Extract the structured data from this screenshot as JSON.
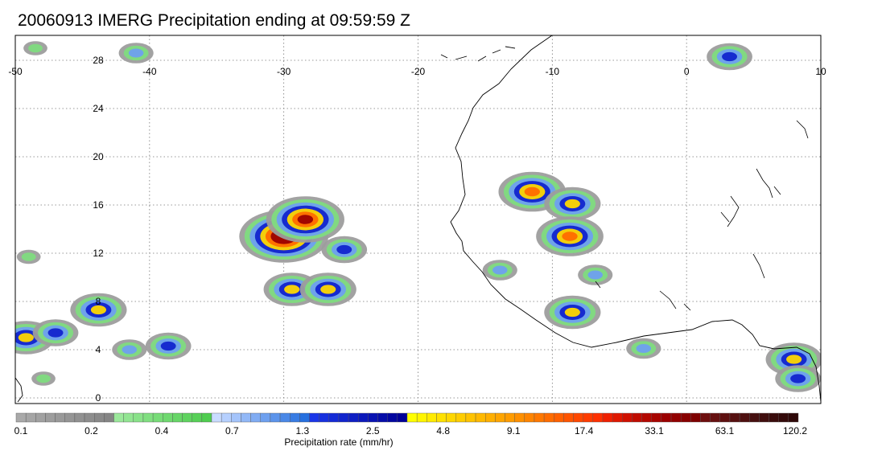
{
  "title": "20060913 IMERG Precipitation ending at 09:59:59 Z",
  "map": {
    "lon_range": [
      -50,
      10
    ],
    "lat_range": [
      0,
      30
    ],
    "lon_labels": [
      "-50",
      "-40",
      "-30",
      "-20",
      "-10",
      "0",
      "10"
    ],
    "lat_labels": [
      "0",
      "4",
      "8",
      "12",
      "16",
      "20",
      "24",
      "28"
    ],
    "grid": "dotted"
  },
  "colorbar": {
    "title": "Precipitation rate (mm/hr)",
    "tick_labels": [
      "0.1",
      "0.2",
      "0.4",
      "0.7",
      "1.3",
      "2.5",
      "4.8",
      "9.1",
      "17.4",
      "33.1",
      "63.1",
      "120.2"
    ],
    "colors": [
      "#a9a9a9",
      "#a5a5a5",
      "#a1a1a1",
      "#9d9d9d",
      "#999999",
      "#959595",
      "#919191",
      "#8d8d8d",
      "#898989",
      "#858585",
      "#9be89b",
      "#92e592",
      "#89e289",
      "#80df80",
      "#77dc77",
      "#6fd96f",
      "#67d667",
      "#5fd35f",
      "#57d057",
      "#4fcd4f",
      "#c9dcff",
      "#b6d0ff",
      "#a4c4fb",
      "#92b8f7",
      "#80acf3",
      "#6ea0ef",
      "#5c94eb",
      "#4a88e7",
      "#387ce3",
      "#2670df",
      "#1a36e8",
      "#1730df",
      "#142ad6",
      "#1124cd",
      "#0e1ec4",
      "#0b18bb",
      "#0812b2",
      "#050ca9",
      "#0206a0",
      "#000097",
      "#ffff00",
      "#fff500",
      "#ffeb00",
      "#ffe100",
      "#ffd700",
      "#ffcd00",
      "#ffc300",
      "#ffb900",
      "#ffaf00",
      "#ffa500",
      "#ff9c00",
      "#ff9000",
      "#ff8400",
      "#ff7800",
      "#ff6c00",
      "#ff6000",
      "#ff5400",
      "#ff4800",
      "#ff3c00",
      "#ff3000",
      "#f02000",
      "#e01800",
      "#d01000",
      "#c00c00",
      "#b40800",
      "#a80400",
      "#9c0000",
      "#920000",
      "#880000",
      "#7e0000",
      "#6e0e0e",
      "#661010",
      "#5e1010",
      "#561010",
      "#4e1010",
      "#461010",
      "#400e0e",
      "#3a0c0c",
      "#340a0a",
      "#2e0808"
    ]
  },
  "precip_cells": [
    {
      "lon": -48.5,
      "lat": 29.0,
      "level": 1
    },
    {
      "lon": -41.0,
      "lat": 28.6,
      "level": 2
    },
    {
      "lon": -49.2,
      "lat": 5.0,
      "level": 4
    },
    {
      "lon": -47.0,
      "lat": 5.4,
      "level": 3
    },
    {
      "lon": -43.8,
      "lat": 7.3,
      "level": 4
    },
    {
      "lon": -38.6,
      "lat": 4.3,
      "level": 3
    },
    {
      "lon": -41.5,
      "lat": 4.0,
      "level": 2
    },
    {
      "lon": -30.0,
      "lat": 13.4,
      "level": 7
    },
    {
      "lon": -28.4,
      "lat": 14.8,
      "level": 6
    },
    {
      "lon": -29.4,
      "lat": 9.0,
      "level": 4
    },
    {
      "lon": -26.7,
      "lat": 9.0,
      "level": 4
    },
    {
      "lon": -25.5,
      "lat": 12.3,
      "level": 3
    },
    {
      "lon": -11.5,
      "lat": 17.1,
      "level": 5
    },
    {
      "lon": -8.5,
      "lat": 16.1,
      "level": 4
    },
    {
      "lon": -8.7,
      "lat": 13.4,
      "level": 5
    },
    {
      "lon": -8.5,
      "lat": 7.1,
      "level": 4
    },
    {
      "lon": -6.8,
      "lat": 10.2,
      "level": 2
    },
    {
      "lon": -13.9,
      "lat": 10.6,
      "level": 2
    },
    {
      "lon": -3.2,
      "lat": 4.1,
      "level": 2
    },
    {
      "lon": 8.0,
      "lat": 3.2,
      "level": 4
    },
    {
      "lon": 8.3,
      "lat": 1.6,
      "level": 3
    },
    {
      "lon": 3.2,
      "lat": 28.3,
      "level": 3
    },
    {
      "lon": -47.9,
      "lat": 1.6,
      "level": 1
    },
    {
      "lon": -49.0,
      "lat": 11.7,
      "level": 1
    }
  ]
}
